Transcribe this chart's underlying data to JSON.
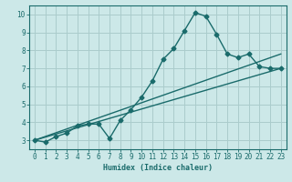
{
  "xlabel": "Humidex (Indice chaleur)",
  "ylabel": "",
  "xlim": [
    -0.5,
    23.5
  ],
  "ylim": [
    2.5,
    10.5
  ],
  "xticks": [
    0,
    1,
    2,
    3,
    4,
    5,
    6,
    7,
    8,
    9,
    10,
    11,
    12,
    13,
    14,
    15,
    16,
    17,
    18,
    19,
    20,
    21,
    22,
    23
  ],
  "yticks": [
    3,
    4,
    5,
    6,
    7,
    8,
    9,
    10
  ],
  "background_color": "#cce8e8",
  "grid_color": "#aacccc",
  "line_color": "#1a6b6b",
  "line1_x": [
    0,
    1,
    2,
    3,
    4,
    5,
    6,
    7,
    8,
    9,
    10,
    11,
    12,
    13,
    14,
    15,
    16,
    17,
    18,
    19,
    20,
    21,
    22,
    23
  ],
  "line1_y": [
    3.0,
    2.9,
    3.2,
    3.4,
    3.8,
    3.9,
    3.9,
    3.1,
    4.1,
    4.7,
    5.4,
    6.3,
    7.5,
    8.1,
    9.1,
    10.1,
    9.9,
    8.9,
    7.8,
    7.6,
    7.8,
    7.1,
    7.0,
    7.0
  ],
  "line2_x": [
    0,
    23
  ],
  "line2_y": [
    3.0,
    7.8
  ],
  "line3_x": [
    0,
    23
  ],
  "line3_y": [
    3.0,
    7.0
  ],
  "marker": "D",
  "markersize": 2.5,
  "linewidth": 1.0
}
